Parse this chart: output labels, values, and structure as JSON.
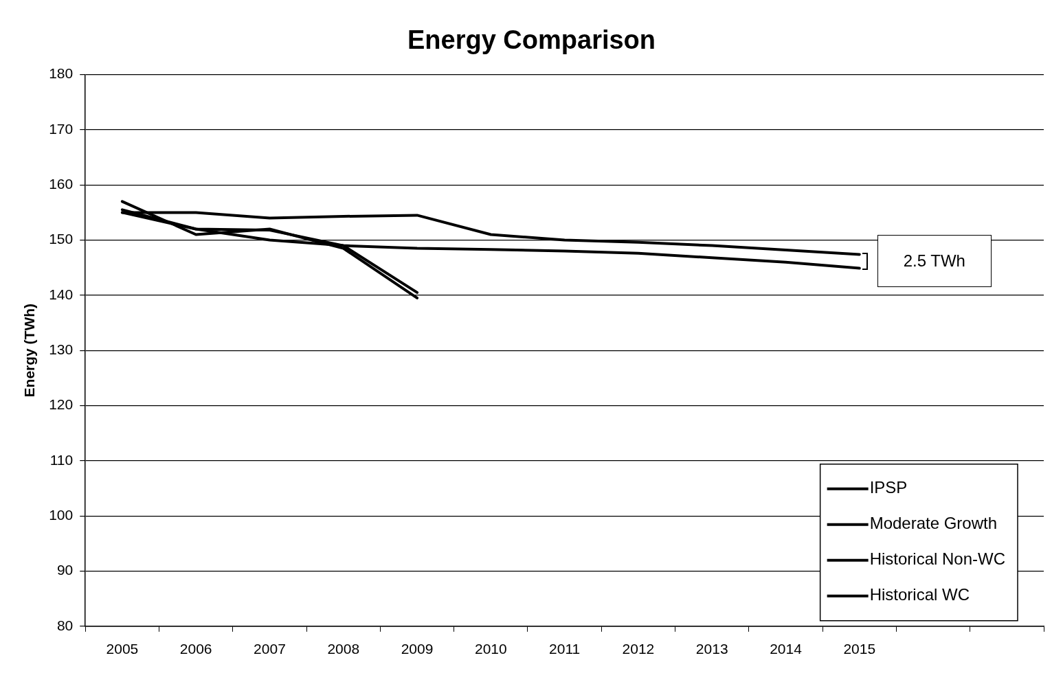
{
  "chart_data": {
    "type": "line",
    "title": "Energy Comparison",
    "ylabel": "Energy (TWh)",
    "categories": [
      "2005",
      "2006",
      "2007",
      "2008",
      "2009",
      "2010",
      "2011",
      "2012",
      "2013",
      "2014",
      "2015",
      null,
      null
    ],
    "ylim": [
      80,
      180
    ],
    "yticks": [
      80,
      90,
      100,
      110,
      120,
      130,
      140,
      150,
      160,
      170,
      180
    ],
    "grid": "y",
    "legend": "bottom right",
    "marker": "none",
    "line_style": "solid",
    "annotations": [
      "2.5 TWh"
    ],
    "series": [
      {
        "name": "IPSP",
        "color": "#000000",
        "values": [
          155,
          155,
          154,
          154.3,
          154.5,
          151,
          150,
          149.6,
          149,
          148.2,
          147.4,
          null,
          null
        ]
      },
      {
        "name": "Moderate Growth",
        "color": "#000000",
        "values": [
          155,
          152,
          150,
          149,
          148.5,
          148.3,
          148,
          147.6,
          146.8,
          146,
          144.9,
          null,
          null
        ]
      },
      {
        "name": "Historical Non-WC",
        "color": "#000000",
        "values": [
          157,
          151,
          152,
          148.5,
          139.5,
          null,
          null,
          null,
          null,
          null,
          null,
          null,
          null
        ]
      },
      {
        "name": "Historical WC",
        "color": "#000000",
        "values": [
          155.5,
          152,
          151.8,
          149,
          140.5,
          null,
          null,
          null,
          null,
          null,
          null,
          null,
          null
        ]
      }
    ]
  }
}
